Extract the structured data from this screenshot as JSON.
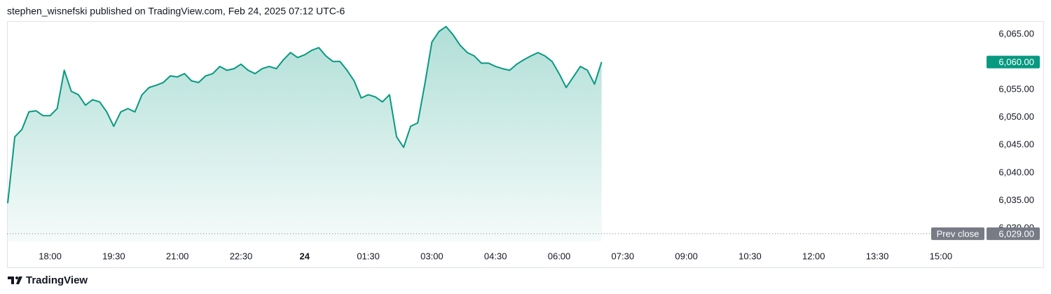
{
  "chart_data": {
    "type": "area",
    "attribution": "stephen_wisnefski published on TradingView.com, Feb 24, 2025 07:12 UTC-6",
    "brand": "TradingView",
    "categories": [
      null,
      null,
      null,
      null,
      null,
      null,
      "18:00",
      null,
      null,
      null,
      null,
      null,
      null,
      null,
      null,
      "19:30",
      null,
      null,
      null,
      null,
      null,
      null,
      null,
      null,
      "21:00",
      null,
      null,
      null,
      null,
      null,
      null,
      null,
      null,
      "22:30",
      null,
      null,
      null,
      null,
      null,
      null,
      null,
      null,
      "24",
      null,
      null,
      null,
      null,
      null,
      null,
      null,
      null,
      "01:30",
      null,
      null,
      null,
      null,
      null,
      null,
      null,
      null,
      "03:00",
      null,
      null,
      null,
      null,
      null,
      null,
      null,
      null,
      "04:30",
      null,
      null,
      null,
      null,
      null,
      null,
      null,
      null,
      "06:00",
      null,
      null,
      null,
      null,
      null,
      null,
      null,
      null,
      "07:30",
      null,
      null,
      null,
      null,
      null,
      null,
      null,
      null,
      "09:00",
      null,
      null,
      null,
      null,
      null,
      null,
      null,
      null,
      "10:30",
      null,
      null,
      null,
      null,
      null,
      null,
      null,
      null,
      "12:00",
      null,
      null,
      null,
      null,
      null,
      null,
      null,
      null,
      "13:30",
      null,
      null,
      null,
      null,
      null,
      null,
      null,
      null,
      "15:00"
    ],
    "emphasized_categories": [
      42
    ],
    "values": [
      6034.5,
      6046.5,
      6047.8,
      6051,
      6051.2,
      6050.3,
      6050.3,
      6051.6,
      6058.5,
      6054.7,
      6054.1,
      6052.2,
      6053.2,
      6052.8,
      6051,
      6048.4,
      6051,
      6051.6,
      6051,
      6054.1,
      6055.4,
      6055.8,
      6056.3,
      6057.5,
      6057.3,
      6057.9,
      6056.6,
      6056.3,
      6057.5,
      6057.9,
      6059.2,
      6058.5,
      6058.8,
      6059.6,
      6058.5,
      6057.9,
      6058.8,
      6059.2,
      6058.8,
      6060.4,
      6061.7,
      6060.8,
      6061.3,
      6062.1,
      6062.6,
      6061.1,
      6060.1,
      6060.1,
      6058.5,
      6056.6,
      6053.5,
      6054.1,
      6053.7,
      6052.8,
      6054.1,
      6046.5,
      6044.6,
      6048.4,
      6049,
      6056,
      6063.6,
      6065.5,
      6066.4,
      6064.9,
      6063,
      6061.7,
      6061.1,
      6059.8,
      6059.8,
      6059.2,
      6058.8,
      6058.5,
      6059.6,
      6060.4,
      6061.1,
      6061.7,
      6061.1,
      6060.1,
      6057.9,
      6055.4,
      6057.3,
      6059.2,
      6058.5,
      6056,
      6060,
      null,
      null,
      null,
      null,
      null,
      null,
      null,
      null,
      null,
      null,
      null,
      null,
      null,
      null,
      null,
      null,
      null,
      null,
      null,
      null,
      null,
      null,
      null,
      null,
      null,
      null,
      null,
      null,
      null,
      null,
      null,
      null,
      null,
      null,
      null,
      null,
      null,
      null,
      null,
      null,
      null,
      null,
      null,
      null,
      null,
      null,
      null,
      null
    ],
    "color": "#089981",
    "ylim": [
      6027.6,
      6067.4
    ],
    "yticks": [
      {
        "value": 6030,
        "label": "6,030.00"
      },
      {
        "value": 6035,
        "label": "6,035.00"
      },
      {
        "value": 6040,
        "label": "6,040.00"
      },
      {
        "value": 6045,
        "label": "6,045.00"
      },
      {
        "value": 6050,
        "label": "6,050.00"
      },
      {
        "value": 6055,
        "label": "6,055.00"
      },
      {
        "value": 6060,
        "label": "6,060.00"
      },
      {
        "value": 6065,
        "label": "6,065.00"
      }
    ],
    "grid": false,
    "last_price": {
      "value": 6060,
      "label": "6,060.00"
    },
    "reference_line": {
      "name": "Prev close",
      "value": 6029,
      "label": "6,029.00",
      "color": "#787b86"
    }
  }
}
